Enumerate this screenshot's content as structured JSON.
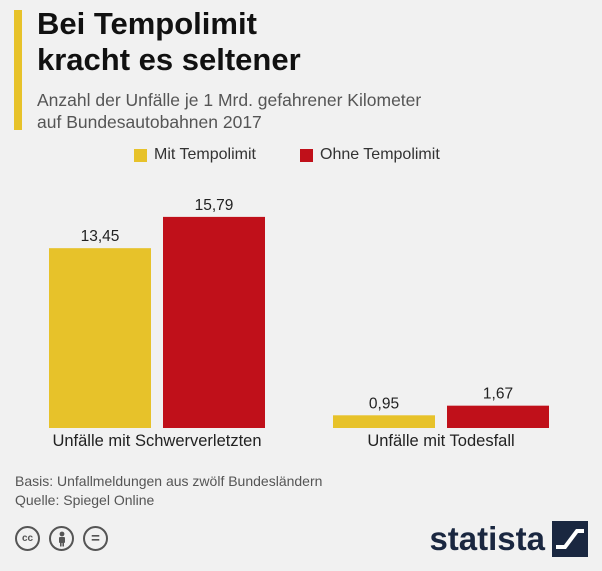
{
  "header": {
    "title_line1": "Bei Tempolimit",
    "title_line2": "kracht es seltener",
    "subtitle_line1": "Anzahl der Unfälle je 1 Mrd. gefahrener Kilometer",
    "subtitle_line2": "auf Bundesautobahnen 2017"
  },
  "colors": {
    "accent": "#e7c22a",
    "series_with_limit": "#e7c22a",
    "series_without_limit": "#c0101a",
    "brand": "#1a2740"
  },
  "chart_data": {
    "type": "bar",
    "title": "Bei Tempolimit kracht es seltener",
    "subtitle": "Anzahl der Unfälle je 1 Mrd. gefahrener Kilometer auf Bundesautobahnen 2017",
    "categories": [
      "Unfälle mit Schwerverletzten",
      "Unfälle mit Todesfall"
    ],
    "series": [
      {
        "name": "Mit Tempolimit",
        "values": [
          13.45,
          0.95
        ],
        "labels": [
          "13,45",
          "0,95"
        ]
      },
      {
        "name": "Ohne Tempolimit",
        "values": [
          15.79,
          1.67
        ],
        "labels": [
          "15,79",
          "1,67"
        ]
      }
    ],
    "ylim": [
      0,
      18
    ],
    "grid": false,
    "legend": "top-center",
    "xlabel": "",
    "ylabel": ""
  },
  "footer": {
    "basis": "Basis: Unfallmeldungen aus zwölf Bundesländern",
    "source": "Quelle: Spiegel Online"
  },
  "license_icons": [
    "cc-icon",
    "by-icon",
    "nd-icon"
  ],
  "license_icon_glyphs": [
    "cc",
    "",
    "="
  ],
  "brand": {
    "name": "statista"
  }
}
